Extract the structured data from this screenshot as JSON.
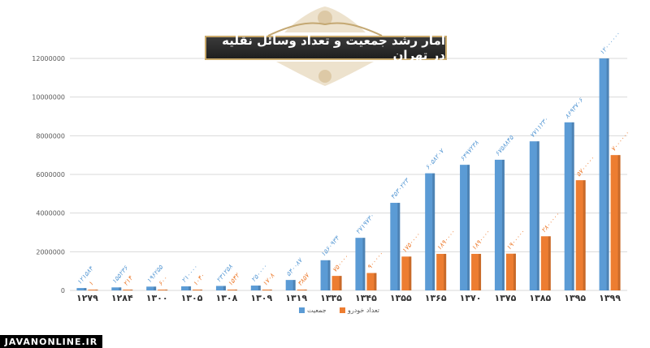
{
  "chart_data": {
    "type": "bar",
    "title": "آمار رشد جمعیت و تعداد وسائل نقلیه در تهران",
    "categories": [
      "۱۲۷۹",
      "۱۲۸۴",
      "۱۳۰۰",
      "۱۳۰۵",
      "۱۳۰۸",
      "۱۳۰۹",
      "۱۳۱۹",
      "۱۳۳۵",
      "۱۳۴۵",
      "۱۳۵۵",
      "۱۳۶۵",
      "۱۳۷۰",
      "۱۳۷۵",
      "۱۳۸۵",
      "۱۳۹۵",
      "۱۳۹۹"
    ],
    "ylim": [
      0,
      12000000
    ],
    "yticks": [
      0,
      2000000,
      4000000,
      6000000,
      8000000,
      10000000,
      12000000
    ],
    "ytick_labels": [
      "0",
      "2000000",
      "4000000",
      "6000000",
      "8000000",
      "10000000",
      "12000000"
    ],
    "grid": true,
    "legend_position": "bottom",
    "series": [
      {
        "name": "جمعیت",
        "color": "#5b9bd5",
        "values": [
          121584,
          155236,
          196255,
          210000,
          231258,
          250000,
          540087,
          1560934,
          2719730,
          4530223,
          6058207,
          6497238,
          6758845,
          7711230,
          8693706,
          12000000
        ],
        "labels": [
          "۱۲۱۵۸۴",
          "۱۵۵۲۳۶",
          "۱۹۶۲۵۵",
          "۲۱۰۰۰۰",
          "۲۳۱۲۵۸",
          "۲۵۰۰۰۰",
          "۵۴۰۰۸۷",
          "۱۵۶۰۹۳۴",
          "۲۷۱۹۷۳۰",
          "۴۵۳۰۲۲۳",
          "۶۰۵۸۲۰۷",
          "۶۴۹۷۲۳۸",
          "۶۷۵۸۸۴۵",
          "۷۷۱۱۲۳۰",
          "۸۶۹۳۷۰۶",
          "۱۲۰۰۰۰۰۰"
        ]
      },
      {
        "name": "تعداد خودرو",
        "color": "#ed7d31",
        "values": [
          1,
          214,
          600,
          1040,
          1542,
          1708,
          3857,
          750000,
          900000,
          1750000,
          1890000,
          1890000,
          1900000,
          2800000,
          5700000,
          7000000
        ],
        "labels": [
          "۱",
          "۲۱۴",
          "۶۰۰",
          "۱۰۴۰",
          "۱۵۴۲",
          "۱۷۰۸",
          "۳۸۵۷",
          "۷۵۰۰۰۰",
          "۹۰۰۰۰۰",
          "۱۷۵۰۰۰۰",
          "۱۸۹۰۰۰۰",
          "۱۸۹۰۰۰۰",
          "۱۹۰۰۰۰۰",
          "۲۸۰۰۰۰۰",
          "۵۷۰۰۰۰۰",
          "۷۰۰۰۰۰۰"
        ]
      }
    ]
  },
  "watermark": "JAVANONLINE.IR"
}
